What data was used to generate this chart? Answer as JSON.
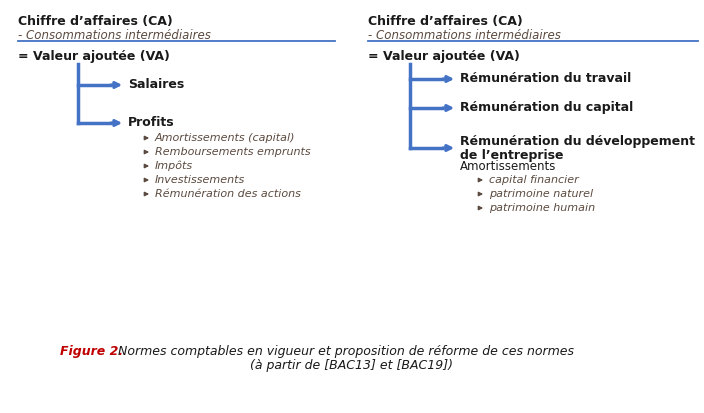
{
  "bg_color": "#ffffff",
  "blue": "#4472C4",
  "dark_text": "#1a1a1a",
  "brown_text": "#5B4A3F",
  "red_text": "#C00000",
  "fig_caption_bold": "Figure 2.",
  "left_title_bold": "Chiffre d’affaires (CA)",
  "left_subtitle": "- Consommations intermédiaires",
  "left_va": "= Valeur ajoutée (VA)",
  "left_branch1": "Salaires",
  "left_branch2": "Profits",
  "left_subitems": [
    "Amortissements (capital)",
    "Remboursements emprunts",
    "Impôts",
    "Investissements",
    "Rémunération des actions"
  ],
  "right_title_bold": "Chiffre d’affaires (CA)",
  "right_subtitle": "- Consommations intermédiaires",
  "right_va": "= Valeur ajoutée (VA)",
  "right_branch1": "Rémunération du travail",
  "right_branch2": "Rémunération du capital",
  "right_branch3_line1": "Rémunération du développement",
  "right_branch3_line2": "de l’entreprise",
  "right_amort_label": "Amortissements",
  "right_subitems": [
    "capital financier",
    "patrimoine naturel",
    "patrimoine humain"
  ],
  "cap_line1": "Normes comptables en vigueur et proposition de réforme de ces normes",
  "cap_line2": "(à partir de [BAC13] et [BAC19])"
}
